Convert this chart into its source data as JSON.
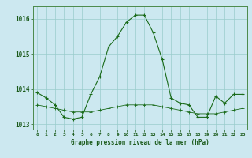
{
  "x": [
    0,
    1,
    2,
    3,
    4,
    5,
    6,
    7,
    8,
    9,
    10,
    11,
    12,
    13,
    14,
    15,
    16,
    17,
    18,
    19,
    20,
    21,
    22,
    23
  ],
  "y_main": [
    1013.9,
    1013.75,
    1013.55,
    1013.2,
    1013.15,
    1013.2,
    1013.85,
    1014.35,
    1015.2,
    1015.5,
    1015.9,
    1016.1,
    1016.1,
    1015.6,
    1014.85,
    1013.75,
    1013.6,
    1013.55,
    1013.2,
    1013.2,
    1013.8,
    1013.6,
    1013.85,
    1013.85
  ],
  "y_avg": [
    1013.55,
    1013.5,
    1013.45,
    1013.4,
    1013.35,
    1013.35,
    1013.35,
    1013.4,
    1013.45,
    1013.5,
    1013.55,
    1013.55,
    1013.55,
    1013.55,
    1013.5,
    1013.45,
    1013.4,
    1013.35,
    1013.3,
    1013.3,
    1013.3,
    1013.35,
    1013.4,
    1013.45
  ],
  "line_color": "#1a6b1a",
  "bg_color": "#cce8f0",
  "grid_color": "#99cccc",
  "border_color": "#4a8a4a",
  "label_color": "#1a5a1a",
  "xlabel": "Graphe pression niveau de la mer (hPa)",
  "ylim": [
    1012.85,
    1016.35
  ],
  "yticks": [
    1013,
    1014,
    1015,
    1016
  ],
  "xticks": [
    0,
    1,
    2,
    3,
    4,
    5,
    6,
    7,
    8,
    9,
    10,
    11,
    12,
    13,
    14,
    15,
    16,
    17,
    18,
    19,
    20,
    21,
    22,
    23
  ]
}
